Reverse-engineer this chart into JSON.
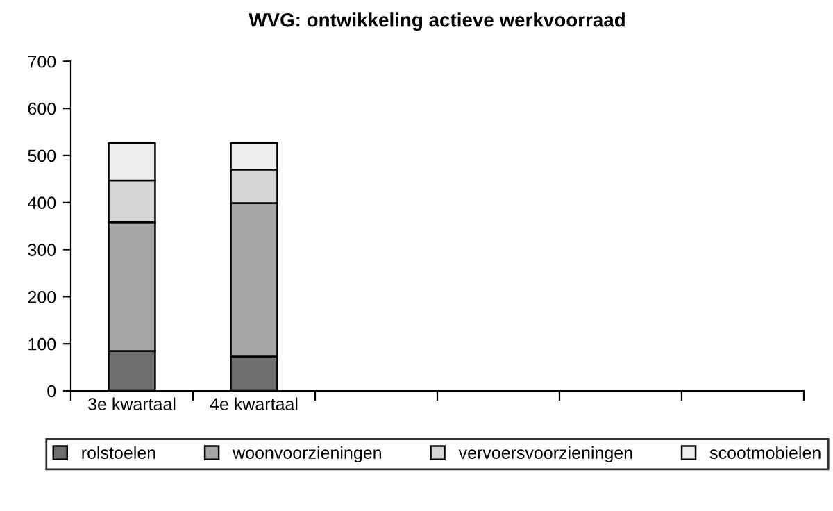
{
  "chart_data": {
    "type": "bar",
    "title": "WVG: ontwikkeling actieve werkvoorraad",
    "stacked": true,
    "categories": [
      "3e kwartaal",
      "4e kwartaal",
      null,
      null,
      null,
      null
    ],
    "series": [
      {
        "name": "rolstoelen",
        "color": "#6e6e6e",
        "values": [
          85,
          73,
          null,
          null,
          null,
          null
        ]
      },
      {
        "name": "woonvoorzieningen",
        "color": "#a6a6a6",
        "values": [
          273,
          326,
          null,
          null,
          null,
          null
        ]
      },
      {
        "name": "vervoersvoorzieningen",
        "color": "#d4d4d4",
        "values": [
          89,
          71,
          null,
          null,
          null,
          null
        ]
      },
      {
        "name": "scootmobielen",
        "color": "#eeeeee",
        "values": [
          79,
          56,
          null,
          null,
          null,
          null
        ]
      }
    ],
    "ylim": [
      0,
      700
    ],
    "yticks": [
      0,
      100,
      200,
      300,
      400,
      500,
      600,
      700
    ],
    "grid": false,
    "legend": "bottom"
  }
}
